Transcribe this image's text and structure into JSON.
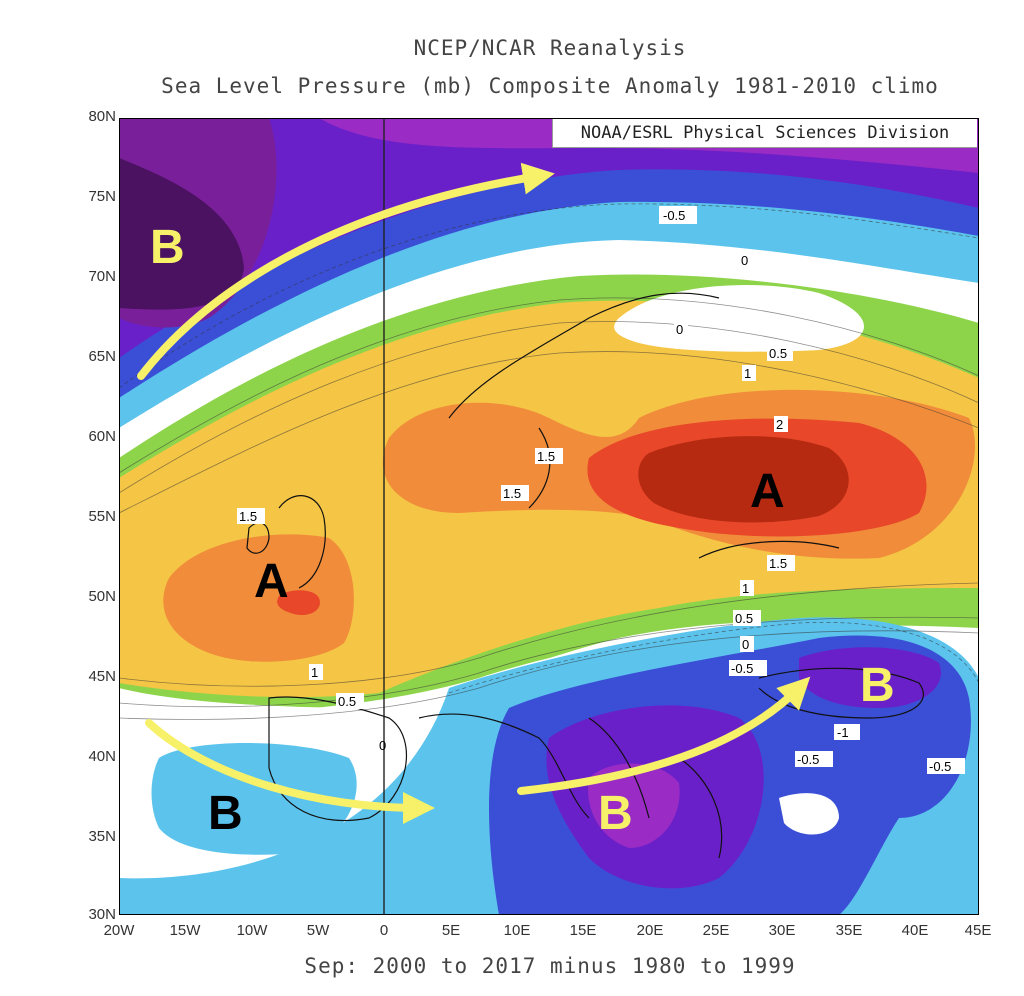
{
  "title_line1": "NCEP/NCAR Reanalysis",
  "title_line2": "Sea Level Pressure (mb) Composite Anomaly 1981-2010 climo",
  "credit": "NOAA/ESRL Physical Sciences Division",
  "bottom_label": "Sep: 2000 to 2017 minus 1980 to 1999",
  "lat_ticks": [
    "80N",
    "75N",
    "70N",
    "65N",
    "60N",
    "55N",
    "50N",
    "45N",
    "40N",
    "35N",
    "30N"
  ],
  "lon_ticks": [
    "20W",
    "15W",
    "10W",
    "5W",
    "0",
    "5E",
    "10E",
    "15E",
    "20E",
    "25E",
    "30E",
    "35E",
    "40E",
    "45E"
  ],
  "contour_labels": [
    "-0.5",
    "0",
    "0",
    "0.5",
    "1",
    "2",
    "1.5",
    "1.5",
    "1.5",
    "1.5",
    "1",
    "0.5",
    "0",
    "-0.5",
    "-1",
    "-0.5",
    "-0.5",
    "1",
    "0.5",
    "0"
  ],
  "annotations": {
    "high_label": "A",
    "low_label": "B"
  },
  "colors": {
    "strong_positive": "#b52a10",
    "positive_2": "#e8472a",
    "positive_1_5": "#f08c3a",
    "positive_1": "#f5c545",
    "positive_0_5": "#8ed44b",
    "neutral": "#ffffff",
    "negative_0_5": "#5cc3ec",
    "negative_1": "#3a4fd6",
    "negative_1_5": "#6a20c8",
    "strong_negative": "#3b0c4a",
    "arrow": "#f7f16a"
  }
}
